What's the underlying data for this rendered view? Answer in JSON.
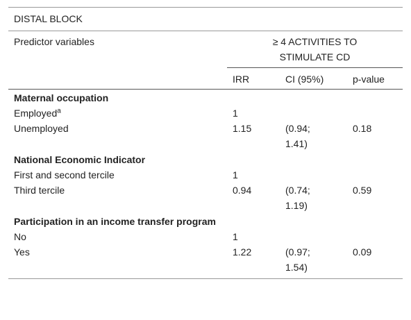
{
  "table": {
    "title": "DISTAL BLOCK",
    "header": {
      "predictor": "Predictor variables",
      "group": "≥ 4 ACTIVITIES TO STIMULATE CD",
      "columns": [
        "IRR",
        "CI (95%)",
        "p-value"
      ]
    },
    "sections": [
      {
        "heading": "Maternal occupation",
        "rows": [
          {
            "label": "Employed",
            "note": "a",
            "irr": "1"
          },
          {
            "label": "Unemployed",
            "irr": "1.15",
            "ci": "(0.94; 1.41)",
            "p": "0.18"
          }
        ]
      },
      {
        "heading": "National Economic Indicator",
        "rows": [
          {
            "label": "First and second tercile",
            "irr": "1"
          },
          {
            "label": "Third tercile",
            "irr": "0.94",
            "ci": "(0.74; 1.19)",
            "p": "0.59"
          }
        ]
      },
      {
        "heading": "Participation in an income transfer program",
        "rows": [
          {
            "label": "No",
            "irr": "1"
          },
          {
            "label": "Yes",
            "irr": "1.22",
            "ci": "(0.97; 1.54)",
            "p": "0.09"
          }
        ]
      }
    ]
  }
}
